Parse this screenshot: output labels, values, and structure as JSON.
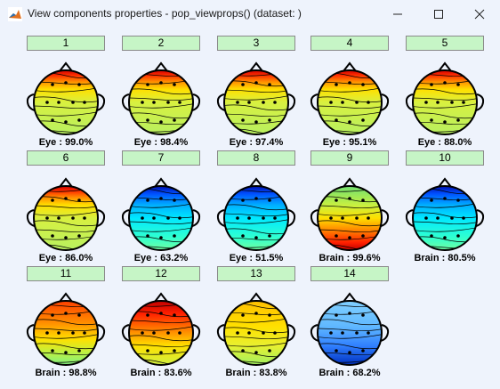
{
  "window": {
    "title": "View components properties - pop_viewprops() (dataset: )"
  },
  "components": [
    {
      "number": "1",
      "label": "Eye : 99.0%",
      "scheme": "A"
    },
    {
      "number": "2",
      "label": "Eye : 98.4%",
      "scheme": "A"
    },
    {
      "number": "3",
      "label": "Eye : 97.4%",
      "scheme": "A"
    },
    {
      "number": "4",
      "label": "Eye : 95.1%",
      "scheme": "A"
    },
    {
      "number": "5",
      "label": "Eye : 88.0%",
      "scheme": "A"
    },
    {
      "number": "6",
      "label": "Eye : 86.0%",
      "scheme": "A"
    },
    {
      "number": "7",
      "label": "Eye : 63.2%",
      "scheme": "B"
    },
    {
      "number": "8",
      "label": "Eye : 51.5%",
      "scheme": "B"
    },
    {
      "number": "9",
      "label": "Brain : 99.6%",
      "scheme": "C"
    },
    {
      "number": "10",
      "label": "Brain : 80.5%",
      "scheme": "B"
    },
    {
      "number": "11",
      "label": "Brain : 98.8%",
      "scheme": "D"
    },
    {
      "number": "12",
      "label": "Brain : 83.6%",
      "scheme": "E"
    },
    {
      "number": "13",
      "label": "Brain : 83.8%",
      "scheme": "F"
    },
    {
      "number": "14",
      "label": "Brain : 68.2%",
      "scheme": "G"
    }
  ],
  "colors": {
    "button_bg": "#c6f5c6",
    "window_bg": "#eef3fc"
  }
}
